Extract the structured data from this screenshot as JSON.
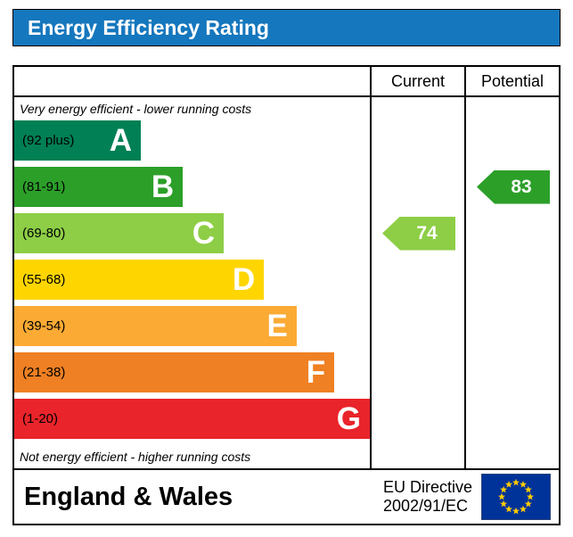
{
  "title": "Energy Efficiency Rating",
  "colors": {
    "title_bar": "#1577bd",
    "frame_border": "#000000"
  },
  "columns": {
    "current": "Current",
    "potential": "Potential"
  },
  "notes": {
    "top": "Very energy efficient - lower running costs",
    "bottom": "Not energy efficient - higher running costs"
  },
  "footer": {
    "region": "England & Wales",
    "directive_line1": "EU Directive",
    "directive_line2": "2002/91/EC",
    "flag_icon": "eu-flag-icon",
    "flag_colors": {
      "field": "#003399",
      "stars": "#ffcc00"
    }
  },
  "chart_data": {
    "type": "bar",
    "title": "Energy Efficiency Rating",
    "categories": [
      "A",
      "B",
      "C",
      "D",
      "E",
      "F",
      "G"
    ],
    "bands": [
      {
        "letter": "A",
        "range": "(92 plus)",
        "color": "#008054",
        "width_pct": 35.6
      },
      {
        "letter": "B",
        "range": "(81-91)",
        "color": "#2c9f29",
        "width_pct": 47.4
      },
      {
        "letter": "C",
        "range": "(69-80)",
        "color": "#8dce46",
        "width_pct": 58.9
      },
      {
        "letter": "D",
        "range": "(55-68)",
        "color": "#ffd500",
        "width_pct": 70.2
      },
      {
        "letter": "E",
        "range": "(39-54)",
        "color": "#fbaa34",
        "width_pct": 79.4
      },
      {
        "letter": "F",
        "range": "(21-38)",
        "color": "#ef8023",
        "width_pct": 90.0
      },
      {
        "letter": "G",
        "range": "(1-20)",
        "color": "#e9242a",
        "width_pct": 100
      }
    ],
    "current": {
      "label": "Current",
      "value": "74",
      "band": "C",
      "color": "#8dce46"
    },
    "potential": {
      "label": "Potential",
      "value": "83",
      "band": "B",
      "color": "#2c9f29"
    },
    "legend_position": "none",
    "grid": false
  }
}
